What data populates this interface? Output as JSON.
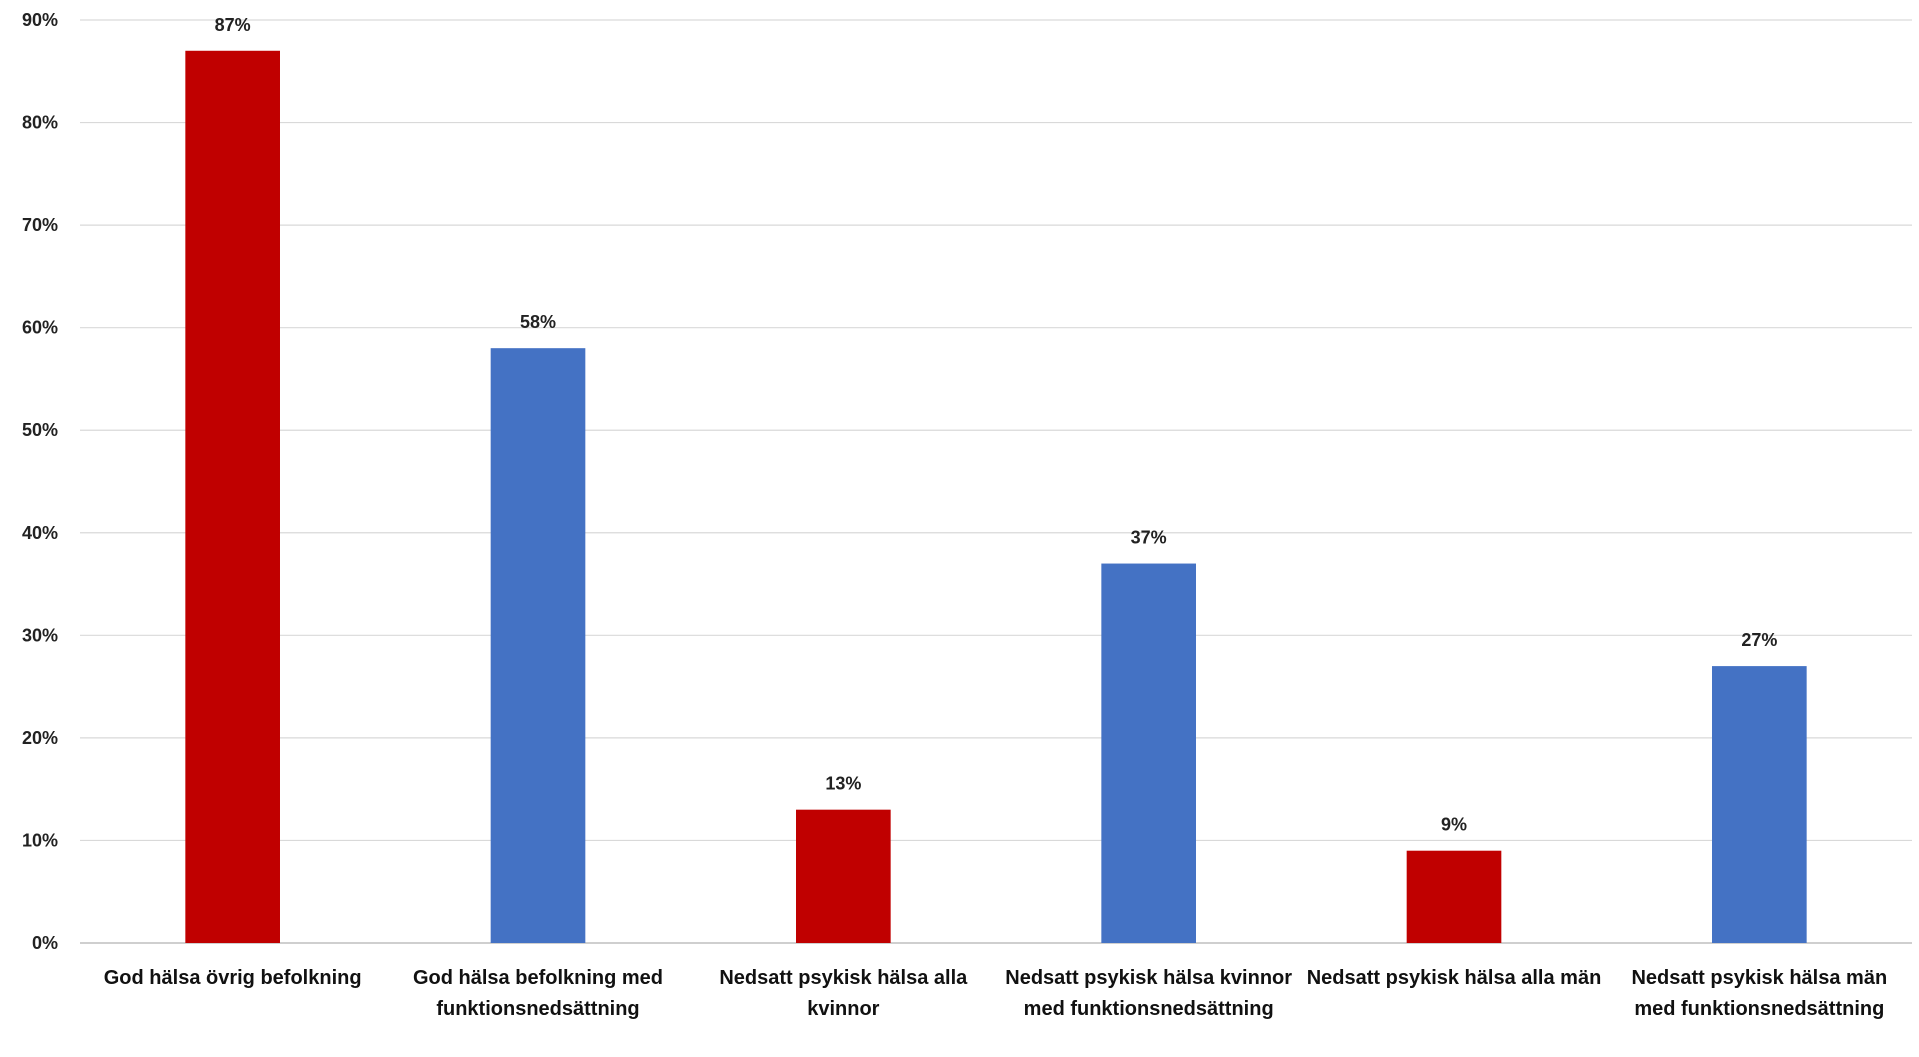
{
  "chart_data": {
    "type": "bar",
    "title": "",
    "xlabel": "",
    "ylabel": "",
    "ylim": [
      0,
      90
    ],
    "yticks": [
      0,
      10,
      20,
      30,
      40,
      50,
      60,
      70,
      80,
      90
    ],
    "ytick_labels": [
      "0%",
      "10%",
      "20%",
      "30%",
      "40%",
      "50%",
      "60%",
      "70%",
      "80%",
      "90%"
    ],
    "grid": true,
    "legend": "none",
    "categories": [
      "God hälsa övrig befolkning",
      "God hälsa befolkning med funktionsnedsättning",
      "Nedsatt psykisk hälsa alla kvinnor",
      "Nedsatt psykisk hälsa kvinnor med funktionsnedsättning",
      "Nedsatt psykisk hälsa alla män",
      "Nedsatt psykisk hälsa män med funktionsnedsättning"
    ],
    "values": [
      87,
      58,
      13,
      37,
      9,
      27
    ],
    "data_labels": [
      "87%",
      "58%",
      "13%",
      "37%",
      "9%",
      "27%"
    ],
    "bar_colors": [
      "#c00000",
      "#4472c4",
      "#c00000",
      "#4472c4",
      "#c00000",
      "#4472c4"
    ]
  }
}
